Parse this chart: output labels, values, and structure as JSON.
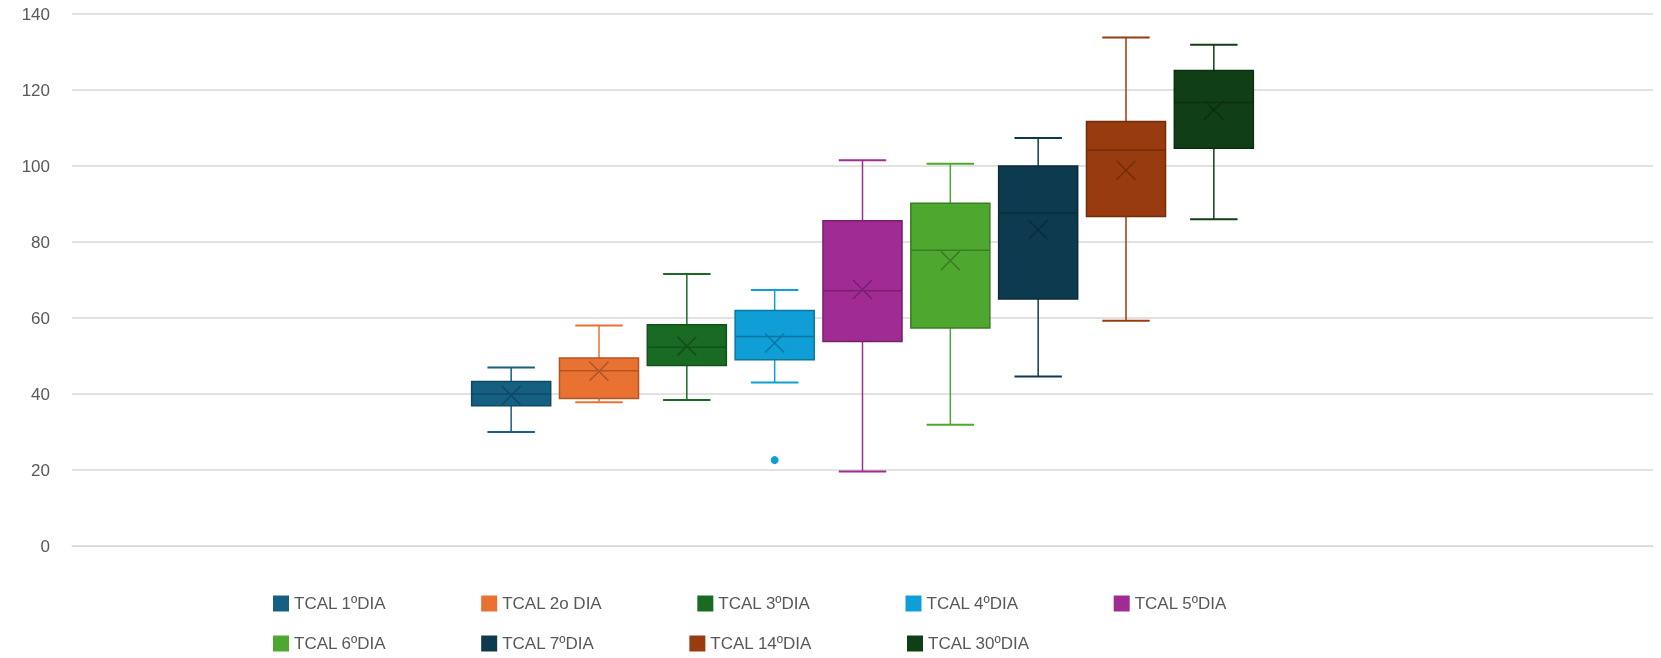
{
  "chart_data": {
    "type": "box",
    "categories": [
      null
    ],
    "ylim": [
      0,
      140
    ],
    "yticks": [
      0,
      20,
      40,
      60,
      80,
      100,
      120,
      140
    ],
    "grid": "y",
    "legend": "bottom",
    "marker": "cross",
    "series": [
      {
        "name": "TCAL 1ºDIA",
        "color": "#156082",
        "boxes": [
          {
            "low": 30,
            "q1": 36.9,
            "median": 40,
            "q3": 43.3,
            "high": 47,
            "mean": 39.6
          }
        ]
      },
      {
        "name": "TCAL 2o DIA",
        "color": "#e97132",
        "boxes": [
          {
            "low": 37.8,
            "q1": 38.8,
            "median": 46.1,
            "q3": 49.5,
            "high": 58,
            "mean": 46
          }
        ]
      },
      {
        "name": "TCAL 3ºDIA",
        "color": "#196b24",
        "boxes": [
          {
            "low": 38.4,
            "q1": 47.5,
            "median": 52.3,
            "q3": 58.2,
            "high": 71.6,
            "mean": 52.6
          }
        ]
      },
      {
        "name": "TCAL 4ºDIA",
        "color": "#0f9ed5",
        "boxes": [
          {
            "low": 43,
            "q1": 49,
            "median": 55.1,
            "q3": 62,
            "high": 67.4,
            "mean": 53.4,
            "outliers": [
              22.6
            ]
          }
        ]
      },
      {
        "name": "TCAL 5ºDIA",
        "color": "#a02b93",
        "boxes": [
          {
            "low": 19.6,
            "q1": 53.8,
            "median": 67.2,
            "q3": 85.6,
            "high": 101.5,
            "mean": 67.5
          }
        ]
      },
      {
        "name": "TCAL 6ºDIA",
        "color": "#4ea72e",
        "boxes": [
          {
            "low": 31.9,
            "q1": 57.4,
            "median": 77.8,
            "q3": 90.2,
            "high": 100.6,
            "mean": 75.1
          }
        ]
      },
      {
        "name": "TCAL 7ºDIA",
        "color": "#0e3a4f",
        "boxes": [
          {
            "low": 44.6,
            "q1": 65,
            "median": 87.6,
            "q3": 100,
            "high": 107.4,
            "mean": 83.2
          }
        ]
      },
      {
        "name": "TCAL 14ºDIA",
        "color": "#983c0f",
        "boxes": [
          {
            "low": 59.3,
            "q1": 86.7,
            "median": 104.2,
            "q3": 111.7,
            "high": 133.8,
            "mean": 98.9
          }
        ]
      },
      {
        "name": "TCAL 30ºDIA",
        "color": "#113f15",
        "boxes": [
          {
            "low": 86,
            "q1": 104.7,
            "median": 116.7,
            "q3": 125.1,
            "high": 131.9,
            "mean": 114.7
          }
        ]
      }
    ]
  }
}
